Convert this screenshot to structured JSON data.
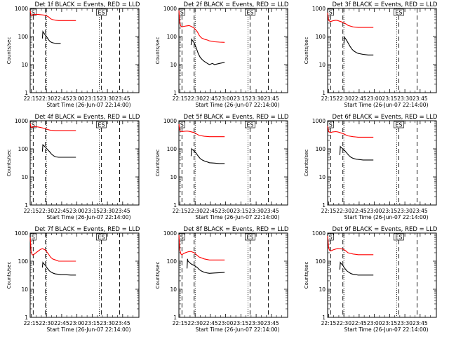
{
  "figure": {
    "xlabel": "Start Time (26-Jun-07 22:14:00)",
    "ylabel": "Counts/sec",
    "x_tick_labels": [
      "22:15",
      "22:30",
      "22:45",
      "23:00",
      "23:15",
      "23:30",
      "23:45"
    ],
    "y_tick_labels": [
      "1",
      "10",
      "100",
      "1000"
    ],
    "marker_labels": [
      "S",
      "ES"
    ]
  },
  "chart_data": [
    {
      "type": "line",
      "title": "Det 1f BLACK = Events, RED = LLD",
      "xlabel": "Start Time (26-Jun-07 22:14:00)",
      "ylabel": "Counts/sec",
      "x_unit": "minutes after 22:14:00",
      "xlim": [
        0,
        107
      ],
      "ylim": [
        1,
        1000
      ],
      "log_y": true,
      "vlines": {
        "dashed": [
          3,
          15,
          70,
          88
        ],
        "dotted": [
          16,
          68
        ]
      },
      "series": [
        {
          "color": "#ff0000",
          "x": [
            0,
            1,
            3,
            5,
            8,
            12,
            15,
            18,
            20,
            22,
            25,
            28,
            30,
            35,
            40,
            45
          ],
          "y": [
            820,
            560,
            590,
            615,
            610,
            590,
            570,
            500,
            430,
            400,
            380,
            370,
            370,
            370,
            370,
            370
          ]
        },
        {
          "color": "#000000",
          "x": [
            12,
            12.5,
            13,
            14,
            15,
            16,
            17,
            18,
            19,
            20,
            21,
            22,
            24,
            26,
            28,
            30
          ],
          "y": [
            85,
            150,
            140,
            125,
            110,
            100,
            88,
            78,
            70,
            65,
            62,
            60,
            58,
            57,
            57,
            57
          ]
        }
      ]
    },
    {
      "type": "line",
      "title": "Det 2f BLACK = Events, RED = LLD",
      "xlabel": "Start Time (26-Jun-07 22:14:00)",
      "ylabel": "Counts/sec",
      "x_unit": "minutes after 22:14:00",
      "xlim": [
        0,
        107
      ],
      "ylim": [
        1,
        1000
      ],
      "log_y": true,
      "vlines": {
        "dashed": [
          3,
          15,
          70,
          88
        ],
        "dotted": [
          16,
          68
        ]
      },
      "series": [
        {
          "color": "#ff0000",
          "x": [
            0,
            1,
            2,
            3,
            5,
            8,
            10,
            12,
            15,
            18,
            20,
            22,
            25,
            28,
            30,
            35,
            40,
            45
          ],
          "y": [
            850,
            300,
            230,
            220,
            230,
            240,
            245,
            230,
            200,
            150,
            110,
            90,
            80,
            75,
            70,
            65,
            63,
            62
          ]
        },
        {
          "color": "#000000",
          "x": [
            12,
            12.5,
            13,
            15,
            17,
            19,
            21,
            23,
            25,
            28,
            30,
            33,
            35,
            40,
            45
          ],
          "y": [
            50,
            80,
            75,
            60,
            40,
            25,
            18,
            15,
            13,
            11,
            10,
            11,
            10,
            11,
            12
          ]
        }
      ]
    },
    {
      "type": "line",
      "title": "Det 3f BLACK = Events, RED = LLD",
      "xlabel": "Start Time (26-Jun-07 22:14:00)",
      "ylabel": "Counts/sec",
      "x_unit": "minutes after 22:14:00",
      "xlim": [
        0,
        107
      ],
      "ylim": [
        1,
        1000
      ],
      "log_y": true,
      "vlines": {
        "dashed": [
          3,
          15,
          70,
          88
        ],
        "dotted": [
          16,
          68
        ]
      },
      "series": [
        {
          "color": "#ff0000",
          "x": [
            0,
            1,
            2,
            3,
            5,
            8,
            10,
            15,
            18,
            20,
            25,
            30,
            35,
            40,
            45
          ],
          "y": [
            700,
            380,
            350,
            340,
            360,
            380,
            370,
            320,
            280,
            250,
            220,
            210,
            210,
            210,
            210
          ]
        },
        {
          "color": "#000000",
          "x": [
            16,
            16.5,
            17,
            18,
            19,
            20,
            22,
            24,
            26,
            28,
            30,
            35,
            40,
            45
          ],
          "y": [
            55,
            95,
            90,
            80,
            70,
            60,
            45,
            35,
            30,
            27,
            25,
            23,
            22,
            22
          ]
        }
      ]
    },
    {
      "type": "line",
      "title": "Det 4f BLACK = Events, RED = LLD",
      "xlabel": "Start Time (26-Jun-07 22:14:00)",
      "ylabel": "Counts/sec",
      "x_unit": "minutes after 22:14:00",
      "xlim": [
        0,
        107
      ],
      "ylim": [
        1,
        1000
      ],
      "log_y": true,
      "vlines": {
        "dashed": [
          3,
          15,
          70,
          88
        ],
        "dotted": [
          16,
          68
        ]
      },
      "series": [
        {
          "color": "#ff0000",
          "x": [
            0,
            1,
            3,
            5,
            8,
            12,
            15,
            18,
            20,
            25,
            30,
            35,
            40,
            45
          ],
          "y": [
            800,
            580,
            600,
            620,
            600,
            560,
            520,
            480,
            460,
            450,
            450,
            450,
            450,
            450
          ]
        },
        {
          "color": "#000000",
          "x": [
            12,
            12.5,
            13,
            15,
            17,
            19,
            21,
            23,
            25,
            28,
            30,
            35,
            40,
            45
          ],
          "y": [
            80,
            140,
            135,
            115,
            95,
            80,
            65,
            57,
            52,
            50,
            50,
            50,
            50,
            50
          ]
        }
      ]
    },
    {
      "type": "line",
      "title": "Det 5f BLACK = Events, RED = LLD",
      "xlabel": "Start Time (26-Jun-07 22:14:00)",
      "ylabel": "Counts/sec",
      "x_unit": "minutes after 22:14:00",
      "xlim": [
        0,
        107
      ],
      "ylim": [
        1,
        1000
      ],
      "log_y": true,
      "vlines": {
        "dashed": [
          3,
          15,
          70,
          88
        ],
        "dotted": [
          16,
          68
        ]
      },
      "series": [
        {
          "color": "#ff0000",
          "x": [
            0,
            1,
            2,
            3,
            5,
            8,
            10,
            15,
            18,
            20,
            25,
            30,
            35,
            40,
            45
          ],
          "y": [
            750,
            450,
            420,
            410,
            420,
            430,
            420,
            380,
            330,
            300,
            280,
            270,
            270,
            270,
            270
          ]
        },
        {
          "color": "#000000",
          "x": [
            12,
            12.5,
            13,
            15,
            17,
            19,
            21,
            23,
            25,
            28,
            30,
            35,
            40,
            45
          ],
          "y": [
            55,
            100,
            95,
            85,
            70,
            55,
            45,
            40,
            37,
            34,
            32,
            31,
            30,
            30
          ]
        }
      ]
    },
    {
      "type": "line",
      "title": "Det 6f BLACK = Events, RED = LLD",
      "xlabel": "Start Time (26-Jun-07 22:14:00)",
      "ylabel": "Counts/sec",
      "x_unit": "minutes after 22:14:00",
      "xlim": [
        0,
        107
      ],
      "ylim": [
        1,
        1000
      ],
      "log_y": true,
      "vlines": {
        "dashed": [
          3,
          15,
          70,
          88
        ],
        "dotted": [
          16,
          68
        ]
      },
      "series": [
        {
          "color": "#ff0000",
          "x": [
            0,
            1,
            2,
            3,
            5,
            8,
            10,
            15,
            18,
            20,
            25,
            30,
            35,
            40,
            45
          ],
          "y": [
            650,
            420,
            390,
            380,
            400,
            410,
            400,
            350,
            310,
            290,
            270,
            260,
            260,
            260,
            260
          ]
        },
        {
          "color": "#000000",
          "x": [
            12,
            12.5,
            13,
            15,
            17,
            19,
            21,
            23,
            25,
            28,
            30,
            35,
            40,
            45
          ],
          "y": [
            60,
            120,
            115,
            100,
            85,
            70,
            58,
            50,
            46,
            43,
            42,
            40,
            40,
            40
          ]
        }
      ]
    },
    {
      "type": "line",
      "title": "Det 7f BLACK = Events, RED = LLD",
      "xlabel": "Start Time (26-Jun-07 22:14:00)",
      "ylabel": "Counts/sec",
      "x_unit": "minutes after 22:14:00",
      "xlim": [
        0,
        107
      ],
      "ylim": [
        1,
        1000
      ],
      "log_y": true,
      "vlines": {
        "dashed": [
          3,
          15,
          70,
          88
        ],
        "dotted": [
          16,
          68
        ]
      },
      "series": [
        {
          "color": "#ff0000",
          "x": [
            0,
            1,
            2,
            3,
            5,
            8,
            10,
            12,
            15,
            18,
            20,
            22,
            25,
            28,
            30,
            35,
            40,
            45
          ],
          "y": [
            700,
            220,
            170,
            165,
            190,
            230,
            260,
            280,
            250,
            180,
            140,
            120,
            110,
            100,
            100,
            100,
            100,
            100
          ]
        },
        {
          "color": "#000000",
          "x": [
            12,
            12.5,
            13,
            15,
            17,
            19,
            21,
            23,
            25,
            28,
            30,
            35,
            40,
            45
          ],
          "y": [
            60,
            90,
            85,
            70,
            55,
            45,
            40,
            37,
            35,
            34,
            33,
            33,
            32,
            32
          ]
        }
      ]
    },
    {
      "type": "line",
      "title": "Det 8f BLACK = Events, RED = LLD",
      "xlabel": "Start Time (26-Jun-07 22:14:00)",
      "ylabel": "Counts/sec",
      "x_unit": "minutes after 22:14:00",
      "xlim": [
        0,
        107
      ],
      "ylim": [
        1,
        1000
      ],
      "log_y": true,
      "vlines": {
        "dashed": [
          3,
          15,
          70,
          88
        ],
        "dotted": [
          16,
          68
        ]
      },
      "series": [
        {
          "color": "#ff0000",
          "x": [
            0,
            1,
            2,
            3,
            5,
            8,
            10,
            12,
            15,
            18,
            20,
            25,
            30,
            35,
            40,
            45
          ],
          "y": [
            850,
            250,
            180,
            170,
            190,
            210,
            220,
            220,
            200,
            160,
            140,
            120,
            110,
            110,
            110,
            110
          ]
        },
        {
          "color": "#000000",
          "x": [
            8,
            8.5,
            9,
            12,
            15,
            18,
            20,
            22,
            25,
            28,
            30,
            35,
            40,
            45
          ],
          "y": [
            55,
            120,
            100,
            80,
            70,
            60,
            50,
            45,
            40,
            38,
            37,
            38,
            39,
            40
          ]
        }
      ]
    },
    {
      "type": "line",
      "title": "Det 9f BLACK = Events, RED = LLD",
      "xlabel": "Start Time (26-Jun-07 22:14:00)",
      "ylabel": "Counts/sec",
      "x_unit": "minutes after 22:14:00",
      "xlim": [
        0,
        107
      ],
      "ylim": [
        1,
        1000
      ],
      "log_y": true,
      "vlines": {
        "dashed": [
          3,
          15,
          70,
          88
        ],
        "dotted": [
          16,
          68
        ]
      },
      "series": [
        {
          "color": "#ff0000",
          "x": [
            0,
            1,
            2,
            3,
            5,
            8,
            10,
            15,
            18,
            20,
            25,
            30,
            35,
            40,
            45
          ],
          "y": [
            800,
            300,
            240,
            230,
            250,
            270,
            280,
            270,
            230,
            200,
            180,
            170,
            170,
            170,
            170
          ]
        },
        {
          "color": "#000000",
          "x": [
            12,
            12.5,
            13,
            15,
            17,
            19,
            21,
            23,
            25,
            28,
            30,
            35,
            40,
            45
          ],
          "y": [
            50,
            90,
            85,
            70,
            55,
            45,
            40,
            36,
            34,
            33,
            32,
            32,
            32,
            32
          ]
        }
      ]
    }
  ]
}
